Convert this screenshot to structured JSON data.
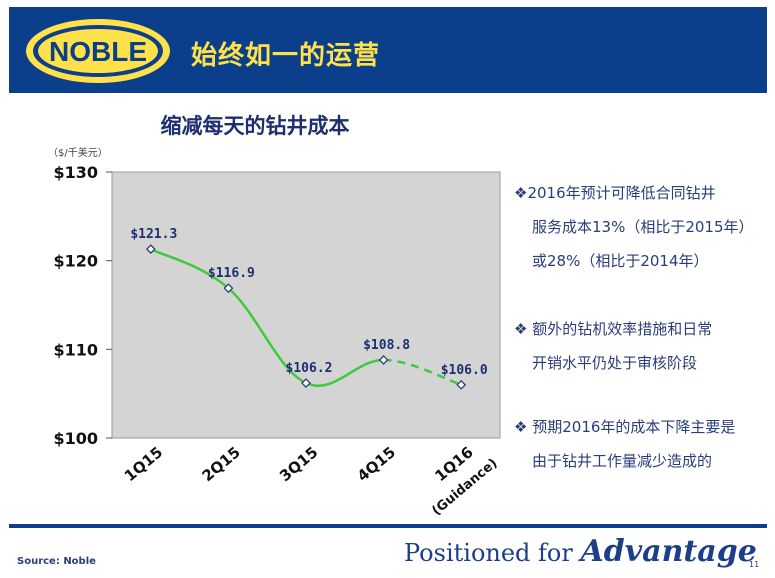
{
  "header": {
    "logo_text": "NOBLE",
    "title": "始终如一的运营"
  },
  "chart_data": {
    "type": "line",
    "title": "缩减每天的钻井成本",
    "unit_label": "（$/千美元）",
    "categories": [
      "1Q15",
      "2Q15",
      "3Q15",
      "4Q15",
      "1Q16 (Guidance)"
    ],
    "category_labels": [
      "1Q15",
      "2Q15",
      "3Q15",
      "4Q15",
      "1Q16"
    ],
    "guidance_label": "(Guidance)",
    "values": [
      121.3,
      116.9,
      106.2,
      108.8,
      106.0
    ],
    "value_labels": [
      "$121.3",
      "$116.9",
      "$106.2",
      "$108.8",
      "$106.0"
    ],
    "ylim": [
      100,
      130
    ],
    "yticks": [
      100,
      110,
      120,
      130
    ],
    "ytick_labels": [
      "$100",
      "$110",
      "$120",
      "$130"
    ],
    "projected_from_index": 3,
    "grid": false,
    "line_color": "#3ec93e",
    "plot_bg": "#d4d4d4"
  },
  "bullets": [
    {
      "lines": [
        "2016年预计可降低合同钻井",
        "服务成本13%（相比于2015年）",
        "或28%（相比于2014年）"
      ]
    },
    {
      "lines": [
        "额外的钻机效率措施和日常",
        "开销水平仍处于审核阶段"
      ]
    },
    {
      "lines": [
        "预期2016年的成本下降主要是",
        "由于钻井工作量减少造成的"
      ]
    }
  ],
  "footer": {
    "source": "Source: Noble",
    "tagline_prefix": "Positioned for ",
    "tagline_emph": "Advantage",
    "page_number": "11"
  },
  "colors": {
    "brand_blue": "#0b3f8c",
    "title_yellow": "#ffe24a",
    "text_navy": "#1d2f6e"
  }
}
